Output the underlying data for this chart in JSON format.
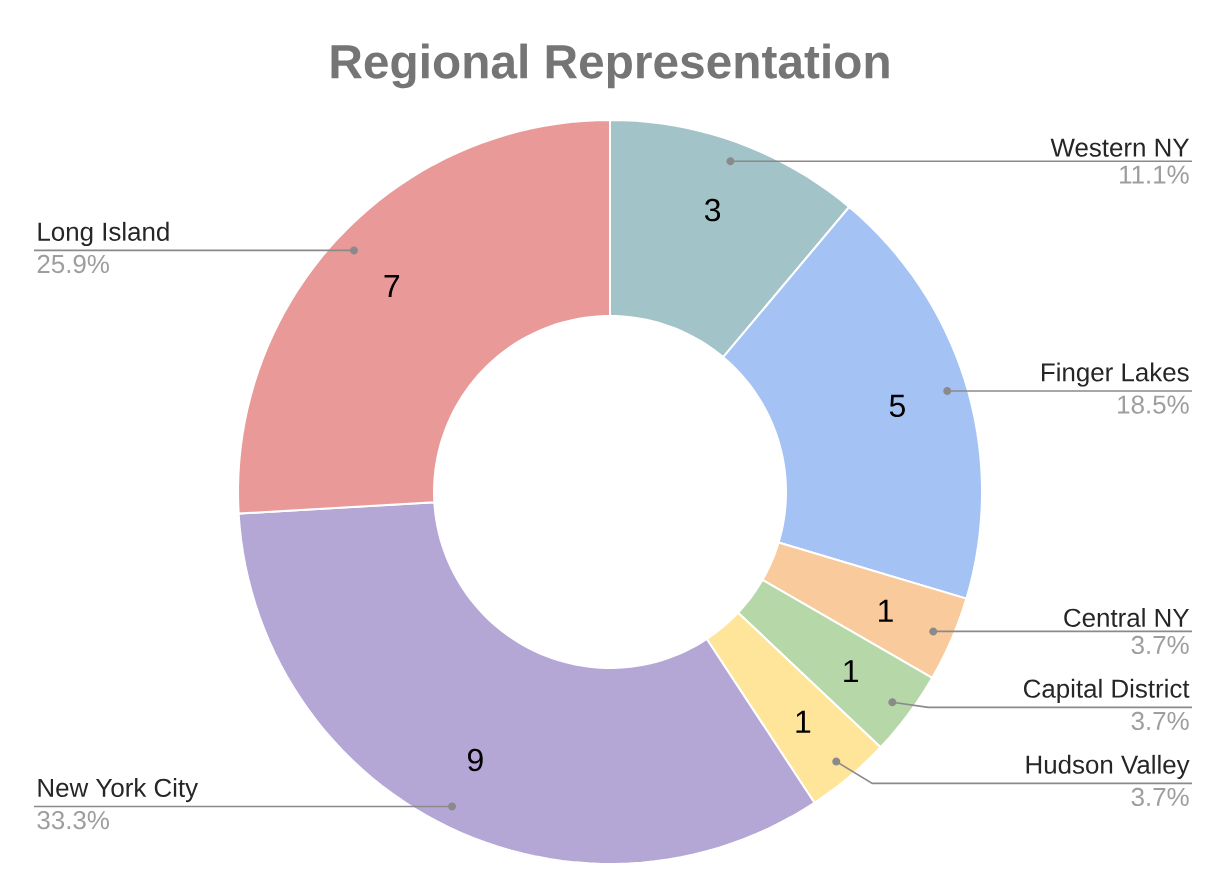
{
  "chart_data": {
    "type": "donut",
    "title": "Regional Representation",
    "categories": [
      "Western NY",
      "Finger Lakes",
      "Central NY",
      "Capital District",
      "Hudson Valley",
      "New York City",
      "Long Island"
    ],
    "values": [
      11.1,
      18.5,
      3.7,
      3.7,
      3.7,
      33.3,
      25.9
    ],
    "annotations": [
      "3",
      "5",
      "1",
      "1",
      "1",
      "9",
      "7"
    ],
    "colors": [
      "#a2c4c9",
      "#a4c2f4",
      "#f9cb9c",
      "#b6d7a8",
      "#ffe599",
      "#b4a7d6",
      "#ea9999"
    ],
    "value_labels": [
      "11.1%",
      "18.5%",
      "3.7%",
      "3.7%",
      "3.7%",
      "33.3%",
      "25.9%"
    ]
  }
}
